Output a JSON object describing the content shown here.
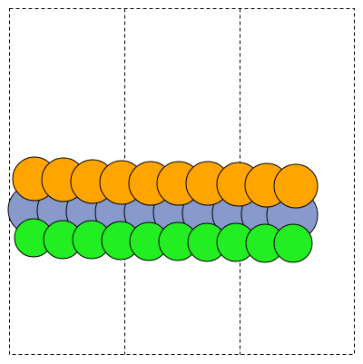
{
  "figure": {
    "description_type": "atomic-layer-diagram",
    "panel_count": 3,
    "layers": [
      {
        "name": "top",
        "fill": "#FFA500",
        "atom_count": 10
      },
      {
        "name": "middle",
        "fill": "#8899CC",
        "atom_count": 10
      },
      {
        "name": "bottom",
        "fill": "#22EE22",
        "atom_count": 10
      }
    ],
    "stroke": "#000000",
    "frame_dash": "4,3"
  }
}
